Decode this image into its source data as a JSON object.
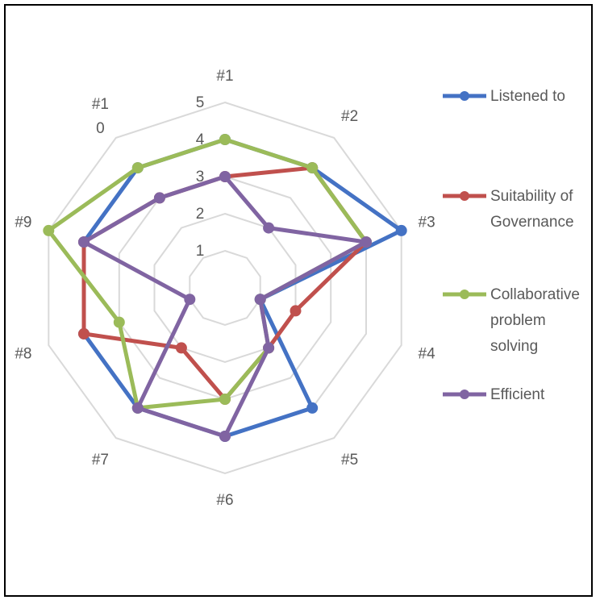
{
  "chart_data": {
    "type": "radar",
    "categories": [
      "#1",
      "#2",
      "#3",
      "#4",
      "#5",
      "#6",
      "#7",
      "#8",
      "#9",
      "#1\n0"
    ],
    "rlim": [
      0,
      5
    ],
    "ticks": [
      "1",
      "2",
      "3",
      "4",
      "5"
    ],
    "tick_values": [
      1,
      2,
      3,
      4,
      5
    ],
    "gridlines": true,
    "legend_position": "right",
    "series": [
      {
        "name": "Listened to",
        "color": "#4472C4",
        "values": [
          4,
          4,
          5,
          1,
          4,
          4,
          4,
          4,
          4,
          4
        ]
      },
      {
        "name": "Suitability of\nGovernance",
        "color": "#C0504D",
        "values": [
          3,
          4,
          4,
          2,
          2,
          3,
          2,
          4,
          4,
          3
        ]
      },
      {
        "name": "Collaborative\nproblem\nsolving",
        "color": "#9BBB59",
        "values": [
          4,
          4,
          4,
          1,
          2,
          3,
          4,
          3,
          5,
          4
        ]
      },
      {
        "name": "Efficient",
        "color": "#8064A2",
        "values": [
          3,
          2,
          4,
          1,
          2,
          4,
          4,
          1,
          4,
          3
        ]
      }
    ]
  }
}
